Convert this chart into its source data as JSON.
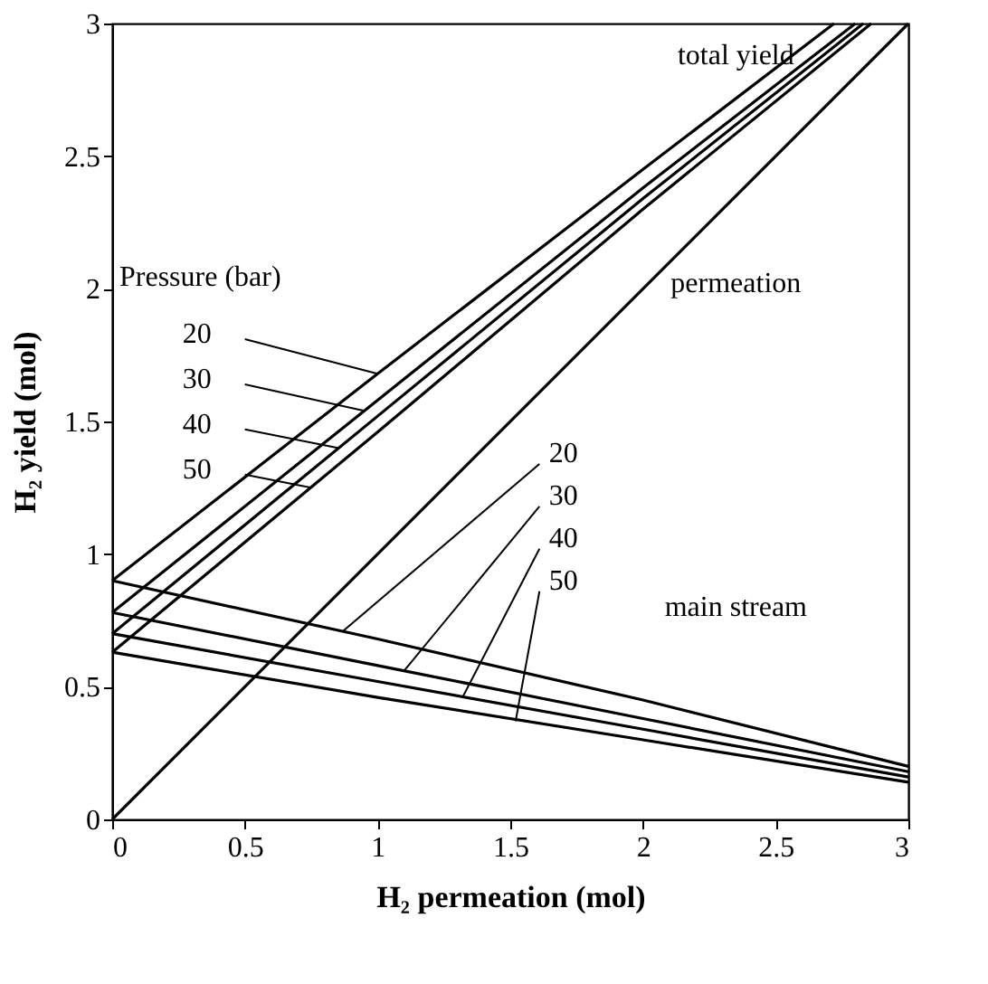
{
  "chart_data": {
    "type": "line",
    "xlabel": "H₂ permeation (mol)",
    "ylabel": "H₂ yield (mol)",
    "xlim": [
      0,
      3
    ],
    "ylim": [
      0,
      3
    ],
    "xticks": [
      0,
      0.5,
      1,
      1.5,
      2,
      2.5,
      3
    ],
    "yticks": [
      0,
      0.5,
      1,
      1.5,
      2,
      2.5,
      3
    ],
    "grid": false,
    "marker": "none",
    "line_style": "solid",
    "series": [
      {
        "color": "#000000",
        "x": [
          0,
          1,
          2,
          2.72
        ],
        "values": [
          0.9,
          1.68,
          2.45,
          3.0
        ]
      },
      {
        "color": "#000000",
        "x": [
          0,
          1,
          2,
          2.8
        ],
        "values": [
          0.78,
          1.58,
          2.38,
          3.0
        ]
      },
      {
        "color": "#000000",
        "x": [
          0,
          1,
          2,
          2.83
        ],
        "values": [
          0.7,
          1.52,
          2.34,
          3.0
        ]
      },
      {
        "color": "#000000",
        "x": [
          0,
          1,
          2,
          2.86
        ],
        "values": [
          0.63,
          1.46,
          2.3,
          3.0
        ]
      },
      {
        "color": "#000000",
        "x": [
          0,
          3
        ],
        "values": [
          0,
          3
        ]
      },
      {
        "color": "#000000",
        "x": [
          0,
          1,
          2,
          3
        ],
        "values": [
          0.9,
          0.68,
          0.45,
          0.2
        ]
      },
      {
        "color": "#000000",
        "x": [
          0,
          1,
          2,
          3
        ],
        "values": [
          0.78,
          0.58,
          0.38,
          0.18
        ]
      },
      {
        "color": "#000000",
        "x": [
          0,
          1,
          2,
          3
        ],
        "values": [
          0.7,
          0.52,
          0.34,
          0.16
        ]
      },
      {
        "color": "#000000",
        "x": [
          0,
          1,
          2,
          3
        ],
        "values": [
          0.63,
          0.46,
          0.3,
          0.14
        ]
      }
    ],
    "annotations": [
      "Pressure (bar)",
      "total yield",
      "permeation",
      "main stream",
      {
        "text": "20",
        "x": 1.0,
        "y": 1.68
      },
      {
        "text": "30",
        "x": 0.95,
        "y": 1.54
      },
      {
        "text": "40",
        "x": 0.85,
        "y": 1.4
      },
      {
        "text": "50",
        "x": 0.75,
        "y": 1.25
      },
      {
        "text": "20",
        "x": 0.87,
        "y": 0.71
      },
      {
        "text": "30",
        "x": 1.1,
        "y": 0.56
      },
      {
        "text": "40",
        "x": 1.32,
        "y": 0.46
      },
      {
        "text": "50",
        "x": 1.52,
        "y": 0.37
      }
    ]
  }
}
